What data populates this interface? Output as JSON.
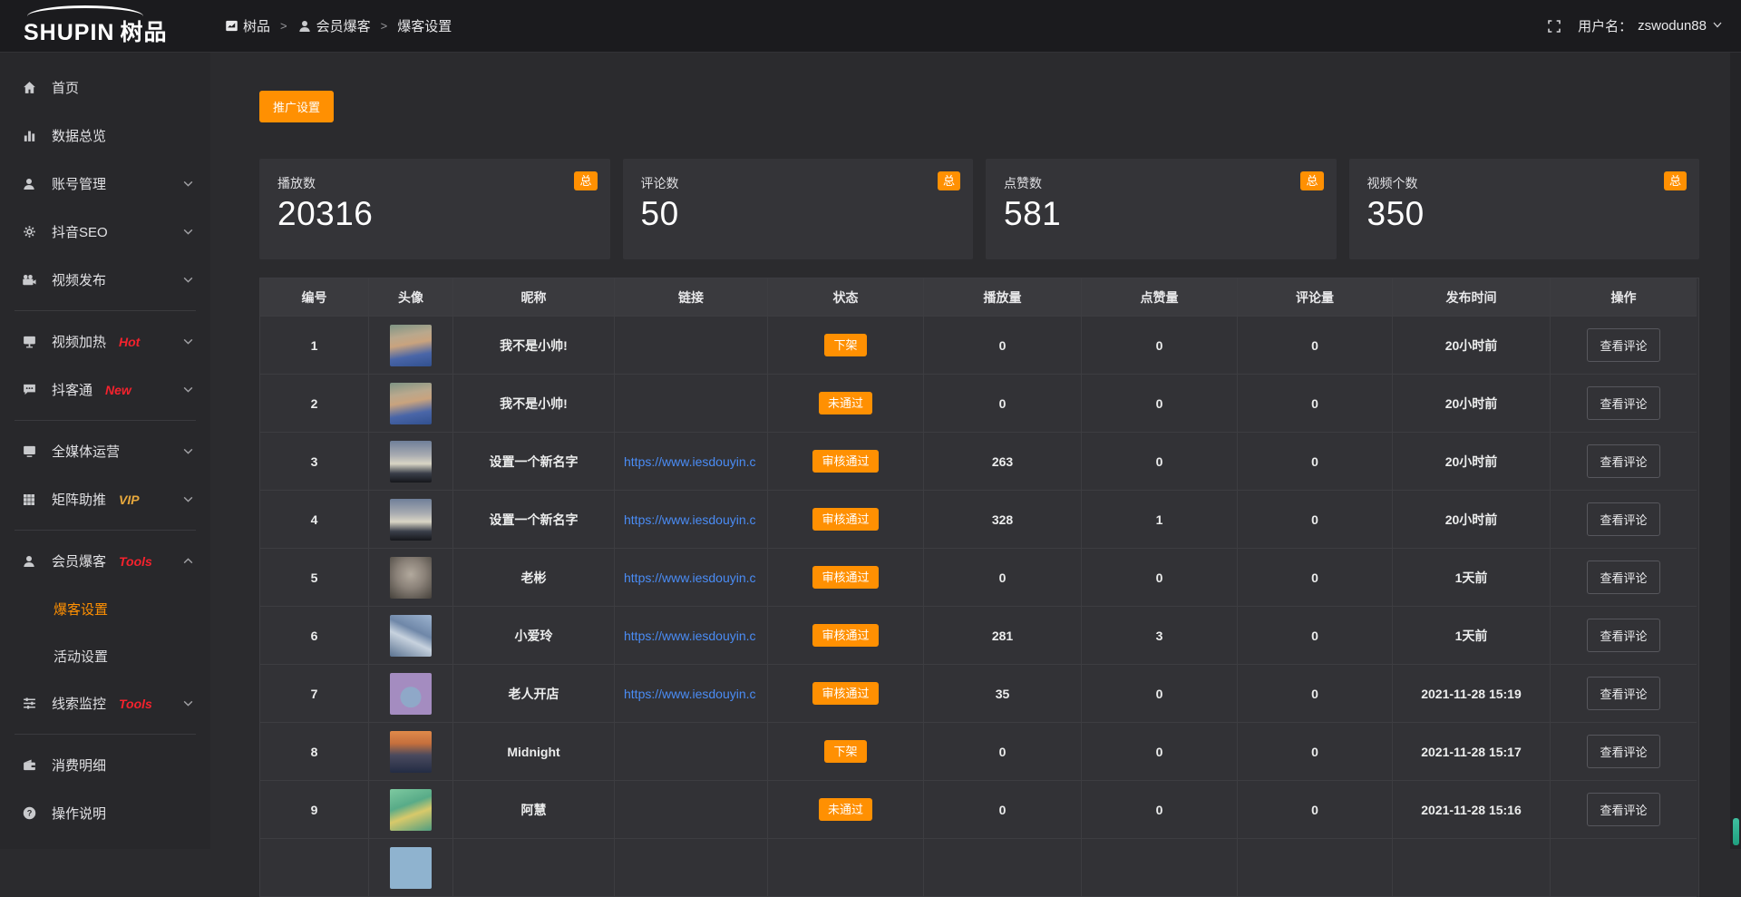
{
  "brand": {
    "logo_en": "SHUPIN",
    "logo_cn": "树品"
  },
  "topbar": {
    "breadcrumb": [
      {
        "label": "树品",
        "icon": "chart-icon"
      },
      {
        "label": "会员爆客",
        "icon": "user-icon"
      },
      {
        "label": "爆客设置",
        "icon": ""
      }
    ],
    "separator": ">",
    "fullscreen_icon": "fullscreen-icon",
    "username_label": "用户名：",
    "username": "zswodun88"
  },
  "sidebar": {
    "items": [
      {
        "type": "item",
        "name": "home",
        "icon": "home-icon",
        "label": "首页"
      },
      {
        "type": "item",
        "name": "data-overview",
        "icon": "bar-chart-icon",
        "label": "数据总览"
      },
      {
        "type": "item",
        "name": "account-management",
        "icon": "user-icon",
        "label": "账号管理",
        "chevron": "down"
      },
      {
        "type": "item",
        "name": "douyin-seo",
        "icon": "gear-icon",
        "label": "抖音SEO",
        "chevron": "down"
      },
      {
        "type": "item",
        "name": "video-publish",
        "icon": "video-camera-icon",
        "label": "视频发布",
        "chevron": "down"
      },
      {
        "type": "divider"
      },
      {
        "type": "item",
        "name": "video-heating",
        "icon": "display-icon",
        "label": "视频加热",
        "badge": "Hot",
        "badge_color": "red",
        "chevron": "down"
      },
      {
        "type": "item",
        "name": "douketong",
        "icon": "chat-icon",
        "label": "抖客通",
        "badge": "New",
        "badge_color": "red",
        "chevron": "down"
      },
      {
        "type": "divider"
      },
      {
        "type": "item",
        "name": "all-media-operation",
        "icon": "monitor-icon",
        "label": "全媒体运营",
        "chevron": "down"
      },
      {
        "type": "item",
        "name": "matrix-boost",
        "icon": "grid-icon",
        "label": "矩阵助推",
        "badge": "VIP",
        "badge_color": "gold",
        "chevron": "down"
      },
      {
        "type": "divider"
      },
      {
        "type": "item",
        "name": "member-baoke",
        "icon": "user-icon",
        "label": "会员爆客",
        "badge": "Tools",
        "badge_color": "red",
        "chevron": "up"
      },
      {
        "type": "subitem",
        "name": "baoke-settings",
        "label": "爆客设置",
        "active": true
      },
      {
        "type": "subitem",
        "name": "activity-settings",
        "label": "活动设置",
        "active": false
      },
      {
        "type": "item",
        "name": "clue-monitoring",
        "icon": "sliders-icon",
        "label": "线索监控",
        "badge": "Tools",
        "badge_color": "red",
        "chevron": "down"
      },
      {
        "type": "divider"
      },
      {
        "type": "item",
        "name": "consumption-details",
        "icon": "wallet-icon",
        "label": "消费明细"
      },
      {
        "type": "item",
        "name": "operation-instructions",
        "icon": "question-icon",
        "label": "操作说明"
      }
    ]
  },
  "toolbar": {
    "promo_label": "推广设置"
  },
  "stats": [
    {
      "label": "播放数",
      "value": "20316",
      "badge": "总"
    },
    {
      "label": "评论数",
      "value": "50",
      "badge": "总"
    },
    {
      "label": "点赞数",
      "value": "581",
      "badge": "总"
    },
    {
      "label": "视频个数",
      "value": "350",
      "badge": "总"
    }
  ],
  "table": {
    "columns": [
      "编号",
      "头像",
      "昵称",
      "链接",
      "状态",
      "播放量",
      "点赞量",
      "评论量",
      "发布时间",
      "操作"
    ],
    "action_label": "查看评论",
    "rows": [
      {
        "id": "1",
        "avatar": "boy",
        "nickname": "我不是小帅!",
        "link": "",
        "status": "下架",
        "plays": "0",
        "likes": "0",
        "comments": "0",
        "time": "20小时前",
        "action": true
      },
      {
        "id": "2",
        "avatar": "boy",
        "nickname": "我不是小帅!",
        "link": "",
        "status": "未通过",
        "plays": "0",
        "likes": "0",
        "comments": "0",
        "time": "20小时前",
        "action": true
      },
      {
        "id": "3",
        "avatar": "dusk",
        "nickname": "设置一个新名字",
        "link": "https://www.iesdouyin.c",
        "status": "审核通过",
        "plays": "263",
        "likes": "0",
        "comments": "0",
        "time": "20小时前",
        "action": true
      },
      {
        "id": "4",
        "avatar": "dusk",
        "nickname": "设置一个新名字",
        "link": "https://www.iesdouyin.c",
        "status": "审核通过",
        "plays": "328",
        "likes": "1",
        "comments": "0",
        "time": "20小时前",
        "action": true
      },
      {
        "id": "5",
        "avatar": "man",
        "nickname": "老彬",
        "link": "https://www.iesdouyin.c",
        "status": "审核通过",
        "plays": "0",
        "likes": "0",
        "comments": "0",
        "time": "1天前",
        "action": true
      },
      {
        "id": "6",
        "avatar": "girl",
        "nickname": "小爱玲",
        "link": "https://www.iesdouyin.c",
        "status": "审核通过",
        "plays": "281",
        "likes": "3",
        "comments": "0",
        "time": "1天前",
        "action": true
      },
      {
        "id": "7",
        "avatar": "cartoon",
        "nickname": "老人开店",
        "link": "https://www.iesdouyin.c",
        "status": "审核通过",
        "plays": "35",
        "likes": "0",
        "comments": "0",
        "time": "2021-11-28 15:19",
        "action": true
      },
      {
        "id": "8",
        "avatar": "sunset",
        "nickname": "Midnight",
        "link": "",
        "status": "下架",
        "plays": "0",
        "likes": "0",
        "comments": "0",
        "time": "2021-11-28 15:17",
        "action": true
      },
      {
        "id": "9",
        "avatar": "green",
        "nickname": "阿慧",
        "link": "",
        "status": "未通过",
        "plays": "0",
        "likes": "0",
        "comments": "0",
        "time": "2021-11-28 15:16",
        "action": true
      },
      {
        "id": "",
        "avatar": "blue",
        "nickname": "",
        "link": "",
        "status": "",
        "plays": "",
        "likes": "",
        "comments": "",
        "time": "",
        "action": false
      }
    ]
  },
  "colors": {
    "accent": "#ff9002",
    "link": "#4a8cf5",
    "hot_badge": "#f5222d",
    "vip_badge": "#e8a93d"
  }
}
